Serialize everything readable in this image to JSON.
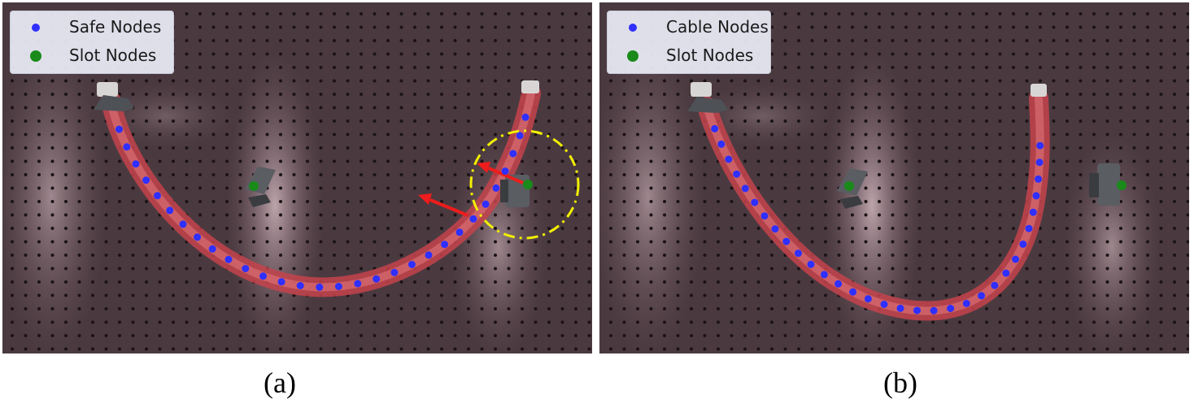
{
  "colors": {
    "node_blue": "#2f2fff",
    "node_green": "#1a8a1a",
    "cable_red": "#d9585f",
    "arrow_red": "#ee1c1c",
    "highlight_yellow": "#f2f000",
    "board": "#3e3136"
  },
  "panels": [
    {
      "caption": "(a)",
      "legend": [
        {
          "label": "Safe Nodes",
          "marker": "blue-dot"
        },
        {
          "label": "Slot Nodes",
          "marker": "green-dot"
        }
      ]
    },
    {
      "caption": "(b)",
      "legend": [
        {
          "label": "Cable Nodes",
          "marker": "blue-dot"
        },
        {
          "label": "Slot Nodes",
          "marker": "green-dot"
        }
      ]
    }
  ]
}
